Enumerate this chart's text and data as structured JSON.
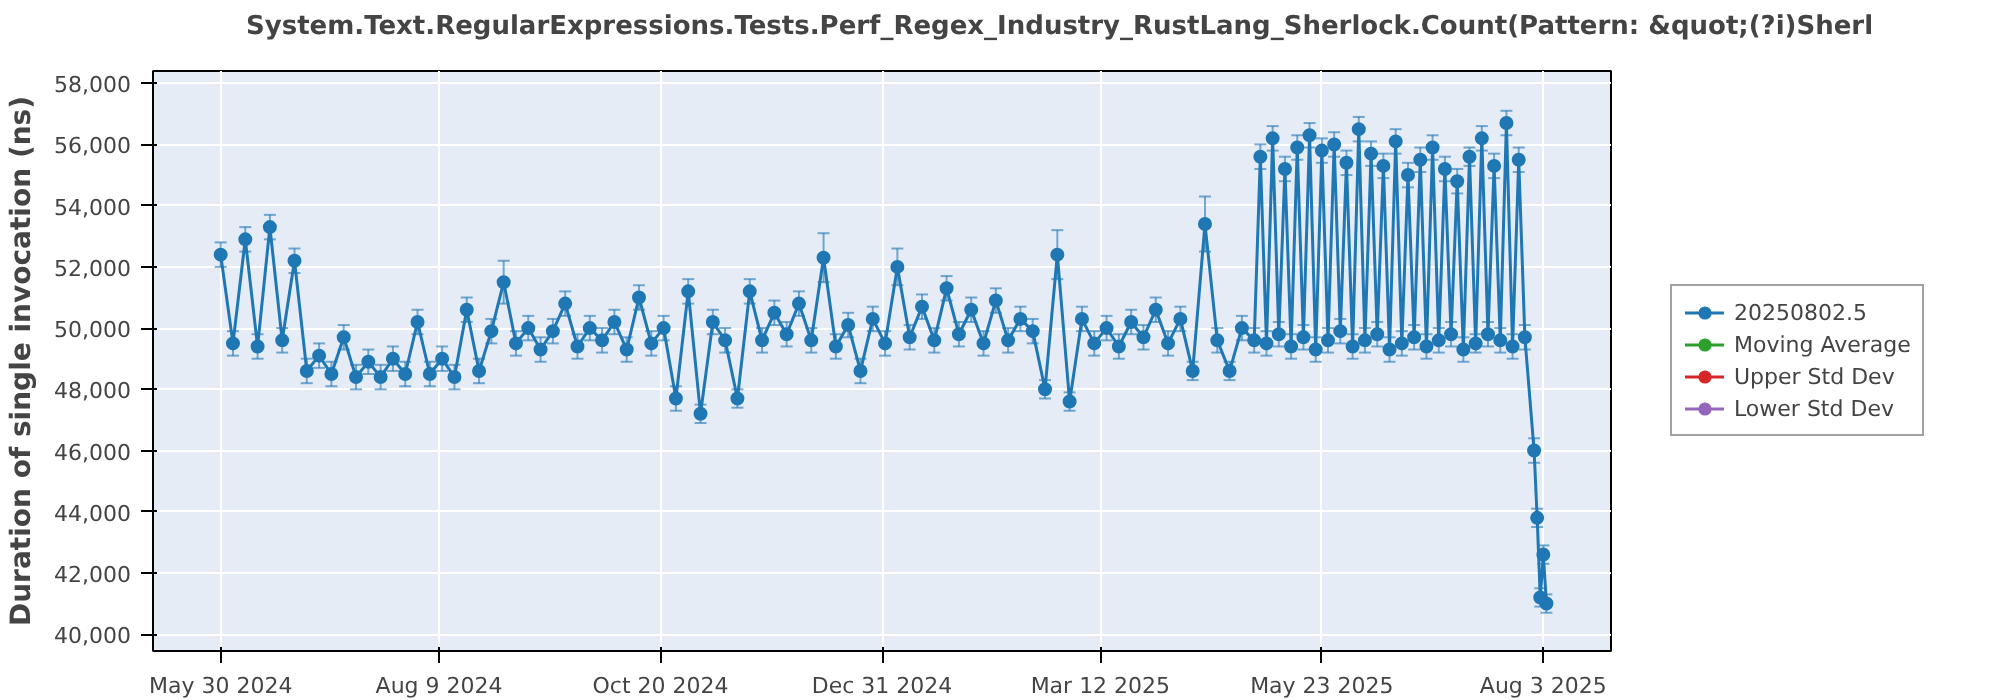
{
  "chart_data": {
    "type": "line",
    "title": "System.Text.RegularExpressions.Tests.Perf_Regex_Industry_RustLang_Sherlock.Count(Pattern: &quot;(?i)Sherl",
    "ylabel": "Duration of single invocation (ns)",
    "xlim": [
      "2024-05-08",
      "2025-08-25"
    ],
    "xticks": [
      {
        "value": "2024-05-30",
        "label": "May 30 2024"
      },
      {
        "value": "2024-08-09",
        "label": "Aug 9 2024"
      },
      {
        "value": "2024-10-20",
        "label": "Oct 20 2024"
      },
      {
        "value": "2024-12-31",
        "label": "Dec 31 2024"
      },
      {
        "value": "2025-03-12",
        "label": "Mar 12 2025"
      },
      {
        "value": "2025-05-23",
        "label": "May 23 2025"
      },
      {
        "value": "2025-08-03",
        "label": "Aug 3 2025"
      }
    ],
    "ylim": [
      39450,
      58400
    ],
    "yticks": [
      {
        "value": 40000,
        "label": "40,000"
      },
      {
        "value": 42000,
        "label": "42,000"
      },
      {
        "value": 44000,
        "label": "44,000"
      },
      {
        "value": 46000,
        "label": "46,000"
      },
      {
        "value": 48000,
        "label": "48,000"
      },
      {
        "value": 50000,
        "label": "50,000"
      },
      {
        "value": 52000,
        "label": "52,000"
      },
      {
        "value": 54000,
        "label": "54,000"
      },
      {
        "value": 56000,
        "label": "56,000"
      },
      {
        "value": 58000,
        "label": "58,000"
      }
    ],
    "grid": true,
    "legend": "right",
    "marker": "circle",
    "line_style": "solid",
    "series": [
      {
        "name": "20250802.5",
        "color": "#1f77b4",
        "x": [
          "2024-05-30",
          "2024-06-03",
          "2024-06-07",
          "2024-06-11",
          "2024-06-15",
          "2024-06-19",
          "2024-06-23",
          "2024-06-27",
          "2024-07-01",
          "2024-07-05",
          "2024-07-09",
          "2024-07-13",
          "2024-07-17",
          "2024-07-21",
          "2024-07-25",
          "2024-07-29",
          "2024-08-02",
          "2024-08-06",
          "2024-08-10",
          "2024-08-14",
          "2024-08-18",
          "2024-08-22",
          "2024-08-26",
          "2024-08-30",
          "2024-09-03",
          "2024-09-07",
          "2024-09-11",
          "2024-09-15",
          "2024-09-19",
          "2024-09-23",
          "2024-09-27",
          "2024-10-01",
          "2024-10-05",
          "2024-10-09",
          "2024-10-13",
          "2024-10-17",
          "2024-10-21",
          "2024-10-25",
          "2024-10-29",
          "2024-11-02",
          "2024-11-06",
          "2024-11-10",
          "2024-11-14",
          "2024-11-18",
          "2024-11-22",
          "2024-11-26",
          "2024-11-30",
          "2024-12-04",
          "2024-12-08",
          "2024-12-12",
          "2024-12-16",
          "2024-12-20",
          "2024-12-24",
          "2024-12-28",
          "2025-01-01",
          "2025-01-05",
          "2025-01-09",
          "2025-01-13",
          "2025-01-17",
          "2025-01-21",
          "2025-01-25",
          "2025-01-29",
          "2025-02-02",
          "2025-02-06",
          "2025-02-10",
          "2025-02-14",
          "2025-02-18",
          "2025-02-22",
          "2025-02-26",
          "2025-03-02",
          "2025-03-06",
          "2025-03-10",
          "2025-03-14",
          "2025-03-18",
          "2025-03-22",
          "2025-03-26",
          "2025-03-30",
          "2025-04-03",
          "2025-04-07",
          "2025-04-11",
          "2025-04-15",
          "2025-04-19",
          "2025-04-23",
          "2025-04-27",
          "2025-05-01",
          "2025-05-03",
          "2025-05-05",
          "2025-05-07",
          "2025-05-09",
          "2025-05-11",
          "2025-05-13",
          "2025-05-15",
          "2025-05-17",
          "2025-05-19",
          "2025-05-21",
          "2025-05-23",
          "2025-05-25",
          "2025-05-27",
          "2025-05-29",
          "2025-05-31",
          "2025-06-02",
          "2025-06-04",
          "2025-06-06",
          "2025-06-08",
          "2025-06-10",
          "2025-06-12",
          "2025-06-14",
          "2025-06-16",
          "2025-06-18",
          "2025-06-20",
          "2025-06-22",
          "2025-06-24",
          "2025-06-26",
          "2025-06-28",
          "2025-06-30",
          "2025-07-02",
          "2025-07-04",
          "2025-07-06",
          "2025-07-08",
          "2025-07-10",
          "2025-07-12",
          "2025-07-14",
          "2025-07-16",
          "2025-07-18",
          "2025-07-20",
          "2025-07-22",
          "2025-07-24",
          "2025-07-26",
          "2025-07-28",
          "2025-07-31",
          "2025-08-01",
          "2025-08-02",
          "2025-08-03",
          "2025-08-04"
        ],
        "values": [
          52400,
          49500,
          52900,
          49400,
          53300,
          49600,
          52200,
          48600,
          49100,
          48500,
          49700,
          48400,
          48900,
          48400,
          49000,
          48500,
          50200,
          48500,
          49000,
          48400,
          50600,
          48600,
          49900,
          51500,
          49500,
          50000,
          49300,
          49900,
          50800,
          49400,
          50000,
          49600,
          50200,
          49300,
          51000,
          49500,
          50000,
          47700,
          51200,
          47200,
          50200,
          49600,
          47700,
          51200,
          49600,
          50500,
          49800,
          50800,
          49600,
          52300,
          49400,
          50100,
          48600,
          50300,
          49500,
          52000,
          49700,
          50700,
          49600,
          51300,
          49800,
          50600,
          49500,
          50900,
          49600,
          50300,
          49900,
          48000,
          52400,
          47600,
          50300,
          49500,
          50000,
          49400,
          50200,
          49700,
          50600,
          49500,
          50300,
          48600,
          53400,
          49600,
          48600,
          50000,
          49600,
          55600,
          49500,
          56200,
          49800,
          55200,
          49400,
          55900,
          49700,
          56300,
          49300,
          55800,
          49600,
          56000,
          49900,
          55400,
          49400,
          56500,
          49600,
          55700,
          49800,
          55300,
          49300,
          56100,
          49500,
          55000,
          49700,
          55500,
          49400,
          55900,
          49600,
          55200,
          49800,
          54800,
          49300,
          55600,
          49500,
          56200,
          49800,
          55300,
          49600,
          56700,
          49400,
          55500,
          49700,
          46000,
          43800,
          41200,
          42600,
          41000
        ],
        "errors": [
          400,
          400,
          400,
          400,
          400,
          400,
          400,
          400,
          400,
          400,
          400,
          400,
          400,
          400,
          400,
          400,
          400,
          400,
          400,
          400,
          400,
          400,
          400,
          700,
          400,
          400,
          400,
          400,
          400,
          400,
          400,
          400,
          400,
          400,
          400,
          400,
          400,
          400,
          400,
          300,
          400,
          400,
          300,
          400,
          400,
          400,
          400,
          400,
          400,
          800,
          400,
          400,
          400,
          400,
          400,
          600,
          400,
          400,
          400,
          400,
          400,
          400,
          400,
          400,
          400,
          400,
          400,
          300,
          800,
          300,
          400,
          400,
          400,
          400,
          400,
          400,
          400,
          400,
          400,
          300,
          900,
          400,
          300,
          400,
          400,
          400,
          400,
          400,
          400,
          400,
          400,
          400,
          400,
          400,
          400,
          400,
          400,
          400,
          400,
          400,
          400,
          400,
          400,
          400,
          400,
          400,
          400,
          400,
          400,
          400,
          400,
          400,
          400,
          400,
          400,
          400,
          400,
          400,
          400,
          300,
          300,
          400,
          400,
          400,
          400,
          400,
          400,
          400,
          400,
          400,
          300,
          300,
          300,
          300
        ]
      },
      {
        "name": "Moving Average",
        "color": "#2ca02c"
      },
      {
        "name": "Upper Std Dev",
        "color": "#d62728"
      },
      {
        "name": "Lower Std Dev",
        "color": "#9467bd"
      }
    ]
  }
}
